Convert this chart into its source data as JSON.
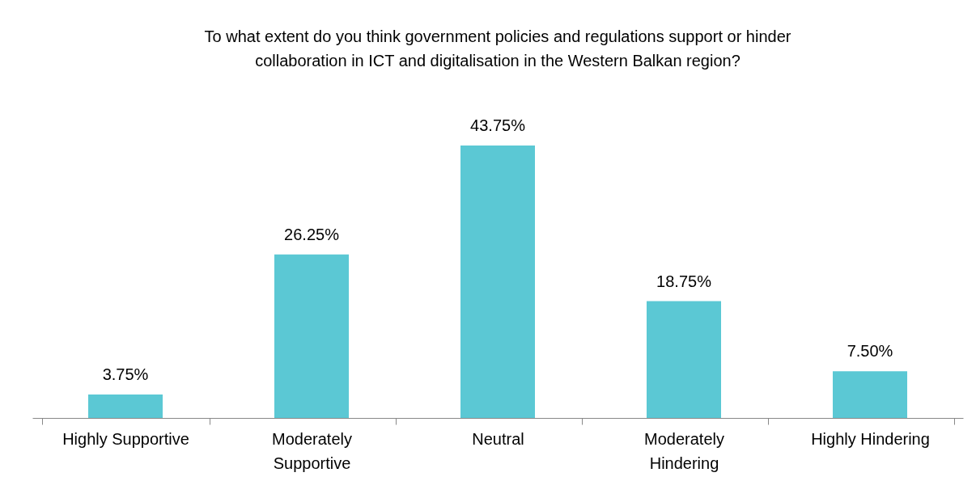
{
  "chart_data": {
    "type": "bar",
    "title": "To what extent do you think government policies and regulations support or hinder collaboration in ICT and digitalisation in the Western Balkan region?",
    "categories": [
      "Highly Supportive",
      "Moderately Supportive",
      "Neutral",
      "Moderately Hindering",
      "Highly Hindering"
    ],
    "values": [
      3.75,
      26.25,
      43.75,
      18.75,
      7.5
    ],
    "value_labels": [
      "3.75%",
      "26.25%",
      "43.75%",
      "18.75%",
      "7.50%"
    ],
    "color": "#5bc8d4",
    "grid": false
  }
}
